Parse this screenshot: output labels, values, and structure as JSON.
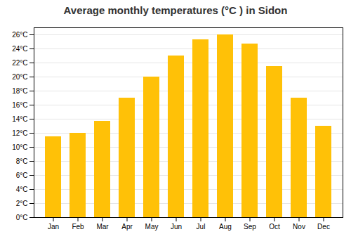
{
  "chart_data": {
    "type": "bar",
    "title": "Average monthly temperatures (°C ) in Sidon",
    "categories": [
      "Jan",
      "Feb",
      "Mar",
      "Apr",
      "May",
      "Jun",
      "Jul",
      "Aug",
      "Sep",
      "Oct",
      "Nov",
      "Dec"
    ],
    "values": [
      11.5,
      12.0,
      13.7,
      17.0,
      20.0,
      23.0,
      25.3,
      26.0,
      24.7,
      21.5,
      17.0,
      13.0
    ],
    "color": "#FFC107",
    "ylim": [
      0,
      27
    ],
    "yticks": [
      {
        "value": 0,
        "label": "0°C"
      },
      {
        "value": 2,
        "label": "2°C"
      },
      {
        "value": 4,
        "label": "4°C"
      },
      {
        "value": 6,
        "label": "6°C"
      },
      {
        "value": 8,
        "label": "8°C"
      },
      {
        "value": 10,
        "label": "10°C"
      },
      {
        "value": 12,
        "label": "12°C"
      },
      {
        "value": 14,
        "label": "14°C"
      },
      {
        "value": 16,
        "label": "16°C"
      },
      {
        "value": 18,
        "label": "18°C"
      },
      {
        "value": 20,
        "label": "20°C"
      },
      {
        "value": 22,
        "label": "22°C"
      },
      {
        "value": 24,
        "label": "24°C"
      },
      {
        "value": 26,
        "label": "26°C"
      }
    ],
    "grid": true
  }
}
